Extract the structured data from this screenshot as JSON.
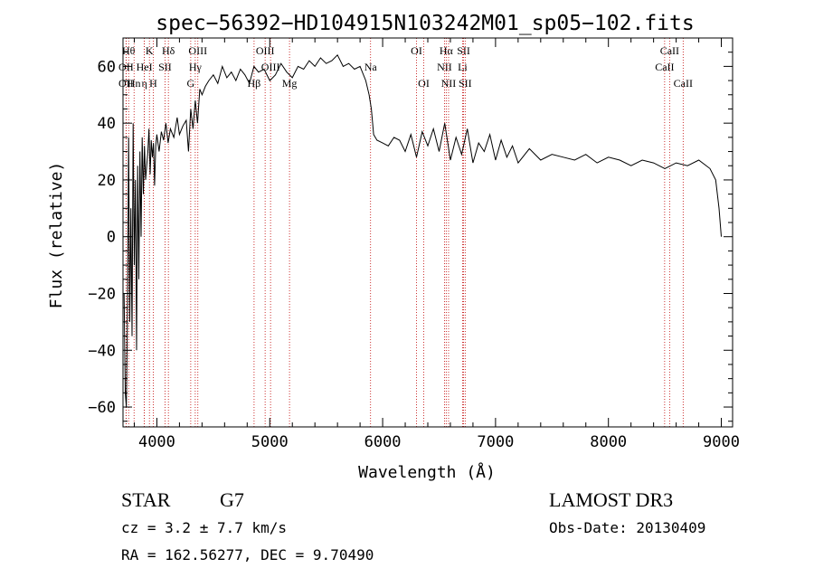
{
  "chart_data": {
    "type": "line",
    "title": "spec−56392−HD104915N103242M01_sp05−102.fits",
    "xlabel": "Wavelength (Å)",
    "ylabel": "Flux (relative)",
    "xlim": [
      3700,
      9100
    ],
    "ylim": [
      -67,
      70
    ],
    "x_ticks": [
      4000,
      5000,
      6000,
      7000,
      8000,
      9000
    ],
    "y_ticks": [
      -60,
      -40,
      -20,
      0,
      20,
      40,
      60
    ],
    "y_tick_labels": [
      "−60",
      "−40",
      "−20",
      "0",
      "20",
      "40",
      "60"
    ],
    "grid": false,
    "line_color": "#000000",
    "marker_color": "#c00000",
    "series": [
      {
        "x": [
          3710,
          3720,
          3730,
          3740,
          3750,
          3760,
          3770,
          3780,
          3790,
          3800,
          3810,
          3820,
          3830,
          3840,
          3850,
          3860,
          3870,
          3880,
          3890,
          3900,
          3910,
          3920,
          3930,
          3940,
          3950,
          3960,
          3970,
          3980,
          3990,
          4000,
          4020,
          4040,
          4060,
          4080,
          4100,
          4120,
          4150,
          4180,
          4200,
          4230,
          4260,
          4280,
          4300,
          4320,
          4340,
          4360,
          4380,
          4400,
          4430,
          4460,
          4500,
          4540,
          4580,
          4620,
          4660,
          4700,
          4740,
          4780,
          4820,
          4860,
          4900,
          4950,
          5000,
          5050,
          5100,
          5150,
          5200,
          5250,
          5300,
          5350,
          5400,
          5450,
          5500,
          5550,
          5600,
          5650,
          5700,
          5750,
          5800,
          5850,
          5880,
          5900,
          5920,
          5950,
          6000,
          6050,
          6100,
          6150,
          6200,
          6250,
          6300,
          6350,
          6400,
          6450,
          6500,
          6550,
          6600,
          6650,
          6700,
          6750,
          6800,
          6850,
          6900,
          6950,
          7000,
          7050,
          7100,
          7150,
          7200,
          7300,
          7400,
          7500,
          7600,
          7700,
          7800,
          7900,
          8000,
          8100,
          8200,
          8300,
          8400,
          8500,
          8600,
          8700,
          8800,
          8900,
          8950,
          8980,
          9000
        ],
        "y": [
          -20,
          -55,
          -60,
          -25,
          35,
          -30,
          10,
          -35,
          40,
          -10,
          20,
          -40,
          25,
          -15,
          30,
          0,
          35,
          15,
          32,
          20,
          25,
          30,
          38,
          22,
          34,
          28,
          33,
          18,
          32,
          36,
          30,
          37,
          34,
          40,
          33,
          38,
          35,
          42,
          36,
          39,
          41,
          30,
          45,
          38,
          48,
          40,
          52,
          50,
          53,
          55,
          57,
          54,
          60,
          56,
          58,
          55,
          59,
          57,
          54,
          60,
          58,
          59,
          55,
          57,
          61,
          58,
          56,
          60,
          59,
          62,
          60,
          63,
          61,
          62,
          64,
          60,
          61,
          59,
          60,
          55,
          50,
          45,
          36,
          34,
          33,
          32,
          35,
          34,
          30,
          36,
          28,
          37,
          32,
          38,
          30,
          40,
          27,
          35,
          29,
          38,
          26,
          33,
          30,
          36,
          27,
          34,
          28,
          32,
          26,
          31,
          27,
          29,
          28,
          27,
          29,
          26,
          28,
          27,
          25,
          27,
          26,
          24,
          26,
          25,
          27,
          24,
          20,
          10,
          0
        ]
      }
    ],
    "line_markers": [
      {
        "wavelength": 3750,
        "label": "Hθ",
        "row": 0
      },
      {
        "wavelength": 3727,
        "label": "OII",
        "row": 1
      },
      {
        "wavelength": 3727,
        "label": "OII",
        "row": 2
      },
      {
        "wavelength": 3798,
        "label": "Hn",
        "row": 2
      },
      {
        "wavelength": 3889,
        "label": "η",
        "row": 2
      },
      {
        "wavelength": 3889,
        "label": "HeI",
        "row": 1
      },
      {
        "wavelength": 3934,
        "label": "K",
        "row": 0
      },
      {
        "wavelength": 3968,
        "label": "H",
        "row": 2
      },
      {
        "wavelength": 4072,
        "label": "SII",
        "row": 1
      },
      {
        "wavelength": 4102,
        "label": "Hδ",
        "row": 0
      },
      {
        "wavelength": 4300,
        "label": "G",
        "row": 2
      },
      {
        "wavelength": 4340,
        "label": "Hγ",
        "row": 1
      },
      {
        "wavelength": 4363,
        "label": "OIII",
        "row": 0
      },
      {
        "wavelength": 4861,
        "label": "Hβ",
        "row": 2
      },
      {
        "wavelength": 4959,
        "label": "OIII",
        "row": 0
      },
      {
        "wavelength": 5007,
        "label": "OIII",
        "row": 1
      },
      {
        "wavelength": 5175,
        "label": "Mg",
        "row": 2
      },
      {
        "wavelength": 5893,
        "label": "Na",
        "row": 1
      },
      {
        "wavelength": 6300,
        "label": "OI",
        "row": 0
      },
      {
        "wavelength": 6364,
        "label": "OI",
        "row": 2
      },
      {
        "wavelength": 6548,
        "label": "NII",
        "row": 1
      },
      {
        "wavelength": 6563,
        "label": "Hα",
        "row": 0
      },
      {
        "wavelength": 6584,
        "label": "NII",
        "row": 2
      },
      {
        "wavelength": 6708,
        "label": "Li",
        "row": 1
      },
      {
        "wavelength": 6717,
        "label": "SII",
        "row": 0
      },
      {
        "wavelength": 6731,
        "label": "SII",
        "row": 2
      },
      {
        "wavelength": 8498,
        "label": "CaII",
        "row": 1
      },
      {
        "wavelength": 8542,
        "label": "CaII",
        "row": 0
      },
      {
        "wavelength": 8662,
        "label": "CaII",
        "row": 2
      }
    ]
  },
  "info": {
    "object_class": "STAR",
    "subclass": "G7",
    "cz": "cz = 3.2 ± 7.7 km/s",
    "coords": "RA = 162.56277, DEC =    9.70490",
    "survey": "LAMOST DR3",
    "obs_date": "Obs-Date: 20130409"
  }
}
